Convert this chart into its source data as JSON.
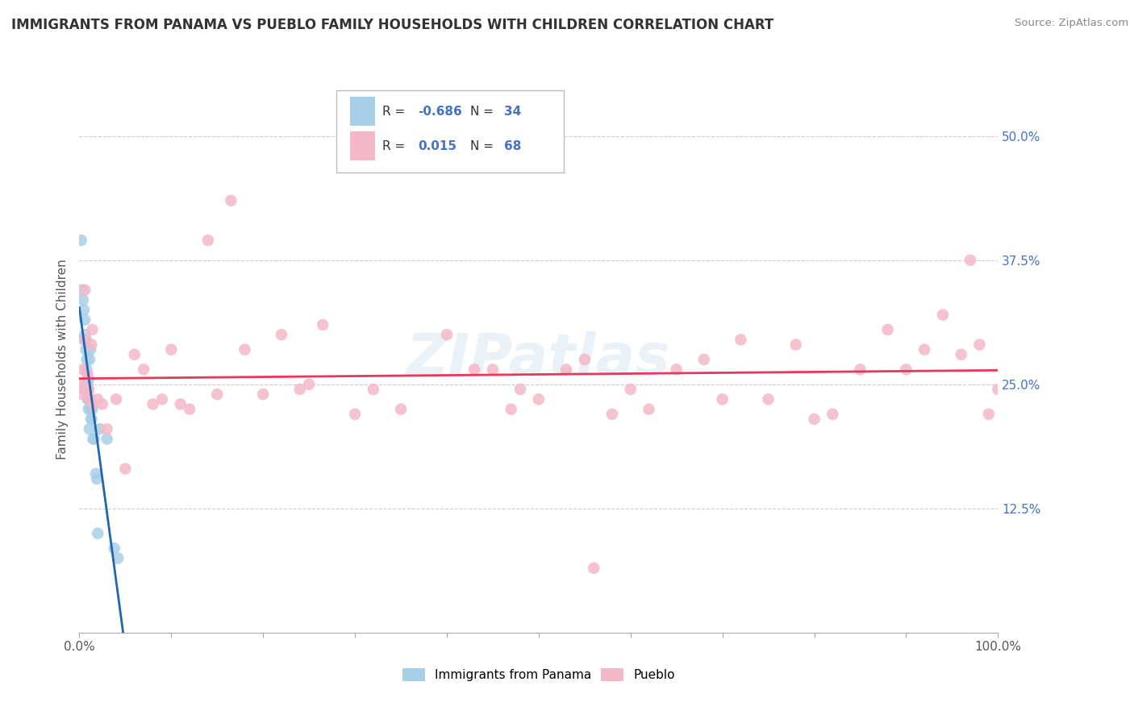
{
  "title": "IMMIGRANTS FROM PANAMA VS PUEBLO FAMILY HOUSEHOLDS WITH CHILDREN CORRELATION CHART",
  "source": "Source: ZipAtlas.com",
  "ylabel": "Family Households with Children",
  "legend_label1": "Immigrants from Panama",
  "legend_label2": "Pueblo",
  "r1": "-0.686",
  "n1": "34",
  "r2": "0.015",
  "n2": "68",
  "xlim": [
    0.0,
    1.0
  ],
  "ylim": [
    0.0,
    0.55
  ],
  "xtick_positions": [
    0.0,
    0.1,
    0.2,
    0.3,
    0.4,
    0.5,
    0.6,
    0.7,
    0.8,
    0.9,
    1.0
  ],
  "xtick_labels_show": [
    "0.0%",
    "",
    "",
    "",
    "",
    "",
    "",
    "",
    "",
    "",
    "100.0%"
  ],
  "ytick_positions": [
    0.125,
    0.25,
    0.375,
    0.5
  ],
  "ytick_labels": [
    "12.5%",
    "25.0%",
    "37.5%",
    "50.0%"
  ],
  "color_blue": "#a8cfe8",
  "color_pink": "#f4b8c8",
  "color_blue_line": "#2166ac",
  "color_pink_line": "#e8375a",
  "watermark": "ZIPatlas",
  "blue_scatter_x": [
    0.002,
    0.003,
    0.004,
    0.005,
    0.005,
    0.006,
    0.006,
    0.007,
    0.007,
    0.008,
    0.008,
    0.009,
    0.009,
    0.009,
    0.01,
    0.01,
    0.01,
    0.01,
    0.011,
    0.011,
    0.012,
    0.012,
    0.013,
    0.013,
    0.014,
    0.015,
    0.016,
    0.018,
    0.019,
    0.02,
    0.022,
    0.03,
    0.038,
    0.042
  ],
  "blue_scatter_y": [
    0.395,
    0.345,
    0.335,
    0.325,
    0.295,
    0.315,
    0.3,
    0.295,
    0.285,
    0.275,
    0.265,
    0.255,
    0.25,
    0.235,
    0.255,
    0.245,
    0.235,
    0.225,
    0.275,
    0.205,
    0.285,
    0.225,
    0.215,
    0.215,
    0.225,
    0.195,
    0.195,
    0.16,
    0.155,
    0.1,
    0.205,
    0.195,
    0.085,
    0.075
  ],
  "pink_scatter_x": [
    0.002,
    0.003,
    0.004,
    0.005,
    0.006,
    0.007,
    0.008,
    0.009,
    0.01,
    0.011,
    0.012,
    0.013,
    0.014,
    0.015,
    0.02,
    0.025,
    0.03,
    0.04,
    0.05,
    0.06,
    0.07,
    0.08,
    0.09,
    0.1,
    0.11,
    0.12,
    0.14,
    0.15,
    0.165,
    0.18,
    0.2,
    0.22,
    0.25,
    0.265,
    0.3,
    0.32,
    0.35,
    0.4,
    0.43,
    0.45,
    0.47,
    0.48,
    0.5,
    0.53,
    0.55,
    0.56,
    0.58,
    0.6,
    0.62,
    0.65,
    0.68,
    0.7,
    0.72,
    0.75,
    0.78,
    0.8,
    0.82,
    0.85,
    0.88,
    0.9,
    0.92,
    0.94,
    0.96,
    0.97,
    0.98,
    0.99,
    1.0,
    0.24
  ],
  "pink_scatter_y": [
    0.25,
    0.24,
    0.265,
    0.245,
    0.345,
    0.295,
    0.245,
    0.26,
    0.245,
    0.235,
    0.235,
    0.29,
    0.305,
    0.23,
    0.235,
    0.23,
    0.205,
    0.235,
    0.165,
    0.28,
    0.265,
    0.23,
    0.235,
    0.285,
    0.23,
    0.225,
    0.395,
    0.24,
    0.435,
    0.285,
    0.24,
    0.3,
    0.25,
    0.31,
    0.22,
    0.245,
    0.225,
    0.3,
    0.265,
    0.265,
    0.225,
    0.245,
    0.235,
    0.265,
    0.275,
    0.065,
    0.22,
    0.245,
    0.225,
    0.265,
    0.275,
    0.235,
    0.295,
    0.235,
    0.29,
    0.215,
    0.22,
    0.265,
    0.305,
    0.265,
    0.285,
    0.32,
    0.28,
    0.375,
    0.29,
    0.22,
    0.245,
    0.245
  ]
}
